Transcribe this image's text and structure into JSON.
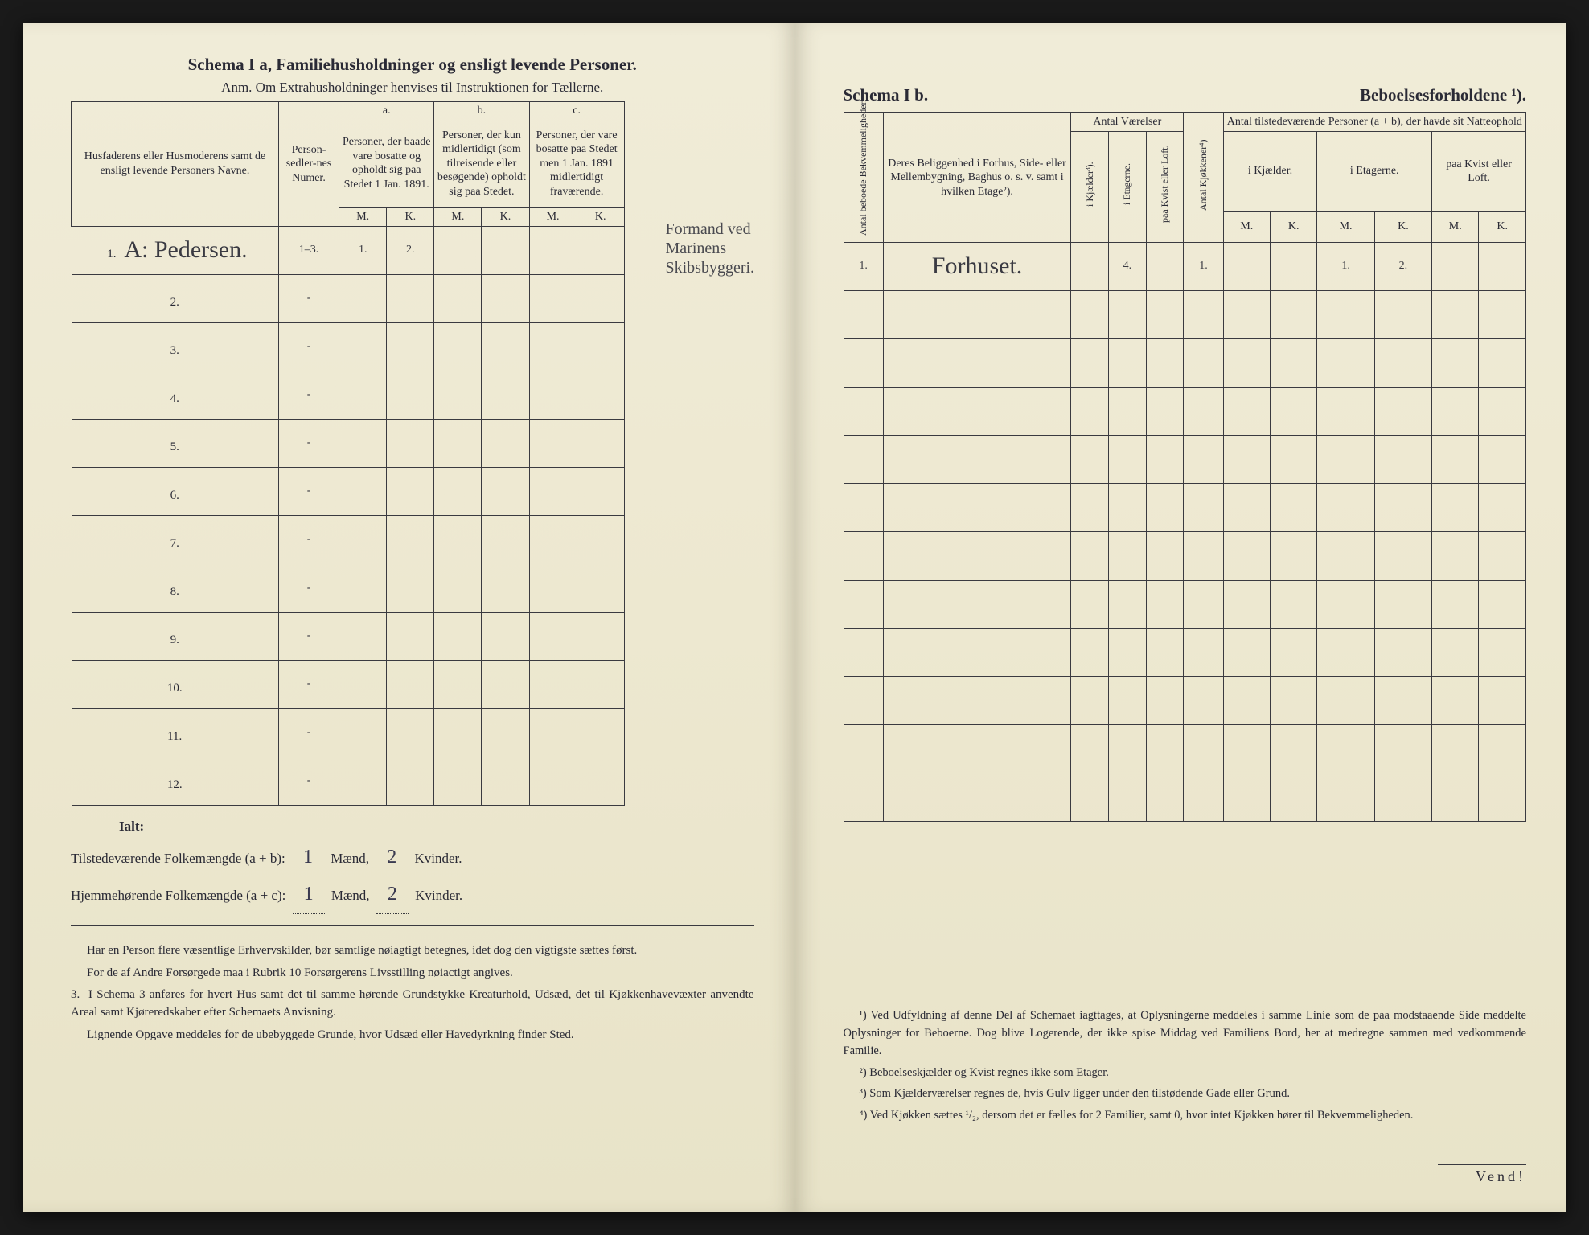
{
  "left": {
    "title": "Schema I a,  Familiehusholdninger og ensligt levende Personer.",
    "subtitle": "Anm. Om Extrahusholdninger henvises til Instruktionen for Tællerne.",
    "headers": {
      "name": "Husfaderens eller Husmoderens samt de ensligt levende Personers Navne.",
      "num": "Person-sedler-nes Numer.",
      "a_top": "a.",
      "a": "Personer, der baade vare bosatte og opholdt sig paa Stedet 1 Jan. 1891.",
      "b_top": "b.",
      "b": "Personer, der kun midlertidigt (som tilreisende eller besøgende) opholdt sig paa Stedet.",
      "c_top": "c.",
      "c": "Personer, der vare bosatte paa Stedet men 1 Jan. 1891 midlertidigt fraværende.",
      "m": "M.",
      "k": "K."
    },
    "rows": [
      {
        "n": "1.",
        "name": "A: Pedersen.",
        "num": "1–3.",
        "am": "1.",
        "ak": "2.",
        "bm": "",
        "bk": "",
        "cm": "",
        "ck": ""
      },
      {
        "n": "2.",
        "name": "",
        "num": "-",
        "am": "",
        "ak": "",
        "bm": "",
        "bk": "",
        "cm": "",
        "ck": ""
      },
      {
        "n": "3.",
        "name": "",
        "num": "-",
        "am": "",
        "ak": "",
        "bm": "",
        "bk": "",
        "cm": "",
        "ck": ""
      },
      {
        "n": "4.",
        "name": "",
        "num": "-",
        "am": "",
        "ak": "",
        "bm": "",
        "bk": "",
        "cm": "",
        "ck": ""
      },
      {
        "n": "5.",
        "name": "",
        "num": "-",
        "am": "",
        "ak": "",
        "bm": "",
        "bk": "",
        "cm": "",
        "ck": ""
      },
      {
        "n": "6.",
        "name": "",
        "num": "-",
        "am": "",
        "ak": "",
        "bm": "",
        "bk": "",
        "cm": "",
        "ck": ""
      },
      {
        "n": "7.",
        "name": "",
        "num": "-",
        "am": "",
        "ak": "",
        "bm": "",
        "bk": "",
        "cm": "",
        "ck": ""
      },
      {
        "n": "8.",
        "name": "",
        "num": "-",
        "am": "",
        "ak": "",
        "bm": "",
        "bk": "",
        "cm": "",
        "ck": ""
      },
      {
        "n": "9.",
        "name": "",
        "num": "-",
        "am": "",
        "ak": "",
        "bm": "",
        "bk": "",
        "cm": "",
        "ck": ""
      },
      {
        "n": "10.",
        "name": "",
        "num": "-",
        "am": "",
        "ak": "",
        "bm": "",
        "bk": "",
        "cm": "",
        "ck": ""
      },
      {
        "n": "11.",
        "name": "",
        "num": "-",
        "am": "",
        "ak": "",
        "bm": "",
        "bk": "",
        "cm": "",
        "ck": ""
      },
      {
        "n": "12.",
        "name": "",
        "num": "-",
        "am": "",
        "ak": "",
        "bm": "",
        "bk": "",
        "cm": "",
        "ck": ""
      }
    ],
    "margin_note": "Formand ved Marinens Skibsbyggeri.",
    "totals": {
      "ialt": "Ialt:",
      "line1_label": "Tilstedeværende Folkemængde (a + b):",
      "line1_m": "1",
      "line1_mw": "Mænd,",
      "line1_k": "2",
      "line1_kw": "Kvinder.",
      "line2_label": "Hjemmehørende Folkemængde (a + c):",
      "line2_m": "1",
      "line2_k": "2"
    },
    "footer": {
      "p1": "Har en Person flere væsentlige Erhvervskilder, bør samtlige nøiagtigt betegnes, idet dog den vigtigste sættes først.",
      "p2": "For de af Andre Forsørgede maa i Rubrik 10 Forsørgerens Livsstilling nøiactigt angives.",
      "p3_num": "3.",
      "p3": "I Schema 3 anføres for hvert Hus samt det til samme hørende Grundstykke Kreaturhold, Udsæd, det til Kjøkkenhavevæxter anvendte Areal samt Kjøreredskaber efter Schemaets Anvisning.",
      "p4": "Lignende Opgave meddeles for de ubebyggede Grunde, hvor Udsæd eller Havedyrkning finder Sted."
    }
  },
  "right": {
    "title_a": "Schema I b.",
    "title_b": "Beboelsesforholdene ¹).",
    "headers": {
      "bekv": "Antal beboede Bekvemmeligheder.",
      "location": "Deres Beliggenhed i Forhus, Side- eller Mellembygning, Baghus o. s. v. samt i hvilken Etage²).",
      "vaer": "Antal Værelser",
      "kjokken": "Antal Kjøkkener⁴)",
      "present": "Antal tilstedeværende Personer (a + b), der havde sit Natteophold",
      "kjelder": "i Kjælder³).",
      "etagerne": "i Etagerne.",
      "kvist": "paa Kvist eller Loft.",
      "ikjael": "i Kjælder.",
      "ietag": "i Etagerne.",
      "paakv": "paa Kvist eller Loft.",
      "m": "M.",
      "k": "K."
    },
    "rows": [
      {
        "n": "1.",
        "loc": "Forhuset.",
        "kj": "",
        "et": "4.",
        "kv": "",
        "kk": "1.",
        "km": "",
        "kkk": "",
        "em": "1.",
        "ek": "2.",
        "pm": "",
        "pk": ""
      },
      {
        "n": "",
        "loc": "",
        "kj": "",
        "et": "",
        "kv": "",
        "kk": "",
        "km": "",
        "kkk": "",
        "em": "",
        "ek": "",
        "pm": "",
        "pk": ""
      },
      {
        "n": "",
        "loc": "",
        "kj": "",
        "et": "",
        "kv": "",
        "kk": "",
        "km": "",
        "kkk": "",
        "em": "",
        "ek": "",
        "pm": "",
        "pk": ""
      },
      {
        "n": "",
        "loc": "",
        "kj": "",
        "et": "",
        "kv": "",
        "kk": "",
        "km": "",
        "kkk": "",
        "em": "",
        "ek": "",
        "pm": "",
        "pk": ""
      },
      {
        "n": "",
        "loc": "",
        "kj": "",
        "et": "",
        "kv": "",
        "kk": "",
        "km": "",
        "kkk": "",
        "em": "",
        "ek": "",
        "pm": "",
        "pk": ""
      },
      {
        "n": "",
        "loc": "",
        "kj": "",
        "et": "",
        "kv": "",
        "kk": "",
        "km": "",
        "kkk": "",
        "em": "",
        "ek": "",
        "pm": "",
        "pk": ""
      },
      {
        "n": "",
        "loc": "",
        "kj": "",
        "et": "",
        "kv": "",
        "kk": "",
        "km": "",
        "kkk": "",
        "em": "",
        "ek": "",
        "pm": "",
        "pk": ""
      },
      {
        "n": "",
        "loc": "",
        "kj": "",
        "et": "",
        "kv": "",
        "kk": "",
        "km": "",
        "kkk": "",
        "em": "",
        "ek": "",
        "pm": "",
        "pk": ""
      },
      {
        "n": "",
        "loc": "",
        "kj": "",
        "et": "",
        "kv": "",
        "kk": "",
        "km": "",
        "kkk": "",
        "em": "",
        "ek": "",
        "pm": "",
        "pk": ""
      },
      {
        "n": "",
        "loc": "",
        "kj": "",
        "et": "",
        "kv": "",
        "kk": "",
        "km": "",
        "kkk": "",
        "em": "",
        "ek": "",
        "pm": "",
        "pk": ""
      },
      {
        "n": "",
        "loc": "",
        "kj": "",
        "et": "",
        "kv": "",
        "kk": "",
        "km": "",
        "kkk": "",
        "em": "",
        "ek": "",
        "pm": "",
        "pk": ""
      },
      {
        "n": "",
        "loc": "",
        "kj": "",
        "et": "",
        "kv": "",
        "kk": "",
        "km": "",
        "kkk": "",
        "em": "",
        "ek": "",
        "pm": "",
        "pk": ""
      }
    ],
    "footnotes": {
      "f1": "¹) Ved Udfyldning af denne Del af Schemaet iagttages, at Oplysningerne meddeles i samme Linie som de paa modstaaende Side meddelte Oplysninger for Beboerne. Dog blive Logerende, der ikke spise Middag ved Familiens Bord, her at medregne sammen med vedkommende Familie.",
      "f2": "²) Beboelseskjælder og Kvist regnes ikke som Etager.",
      "f3": "³) Som Kjælderværelser regnes de, hvis Gulv ligger under den tilstødende Gade eller Grund.",
      "f4": "⁴) Ved Kjøkken sættes ¹/₂, dersom det er fælles for 2 Familier, samt 0, hvor intet Kjøkken hører til Bekvemmeligheden."
    },
    "vend": "Vend!"
  }
}
